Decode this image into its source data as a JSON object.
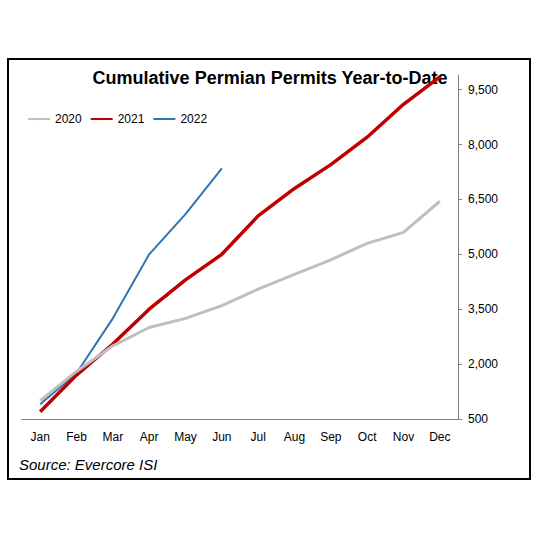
{
  "chart_data": {
    "type": "line",
    "title": "Cumulative Permian Permits Year-to-Date",
    "source": "Source: Evercore ISI",
    "categories": [
      "Jan",
      "Feb",
      "Mar",
      "Apr",
      "May",
      "Jun",
      "Jul",
      "Aug",
      "Sep",
      "Oct",
      "Nov",
      "Dec"
    ],
    "series": [
      {
        "name": "2020",
        "color": "#bfbfbf",
        "values": [
          1000,
          1800,
          2500,
          3000,
          3250,
          3600,
          4050,
          4450,
          4850,
          5300,
          5600,
          6450
        ]
      },
      {
        "name": "2021",
        "color": "#c00000",
        "values": [
          700,
          1700,
          2550,
          3500,
          4300,
          5000,
          6050,
          6800,
          7450,
          8200,
          9100,
          9850
        ]
      },
      {
        "name": "2022",
        "color": "#2e75b6",
        "values": [
          900,
          1750,
          3250,
          5000,
          6100,
          7350,
          null,
          null,
          null,
          null,
          null,
          null
        ]
      }
    ],
    "ylim": [
      500,
      9900
    ],
    "yticks": [
      500,
      {
        "value": 2000,
        "label": "2,000"
      },
      {
        "value": 3500,
        "label": "3,500"
      },
      {
        "value": 5000,
        "label": "5,000"
      },
      {
        "value": 6500,
        "label": "6,500"
      },
      {
        "value": 8000,
        "label": "8,000"
      },
      {
        "value": 9500,
        "label": "9,500"
      }
    ],
    "grid": false,
    "legend": "top-left"
  }
}
